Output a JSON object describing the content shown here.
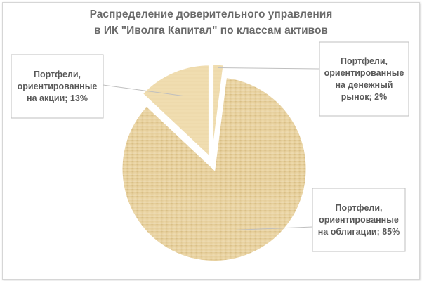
{
  "chart_data": {
    "type": "pie",
    "title_lines": [
      "Распределение доверительного управления",
      "в ИК \"Иволга Капитал\" по классам активов"
    ],
    "slices": [
      {
        "label_lines": [
          "Портфели,",
          "ориентированные",
          "на денежный",
          "рынок; 2%"
        ],
        "value": 2
      },
      {
        "label_lines": [
          "Портфели,",
          "ориентированные",
          "на облигации; 85%"
        ],
        "value": 85
      },
      {
        "label_lines": [
          "Портфели,",
          "ориентированные",
          "на акции; 13%"
        ],
        "value": 13
      }
    ],
    "start_angle_deg": 0,
    "direction": "clockwise",
    "exploded": true,
    "legend": "none",
    "colors": {
      "fill": "#e7d09e",
      "fill_light": "#f0ddb0",
      "fill_dark": "#d8bd82",
      "slice_border": "#ffffff",
      "callout_border": "#bfbfbf",
      "text": "#595959",
      "title": "#6a6a6a"
    }
  }
}
